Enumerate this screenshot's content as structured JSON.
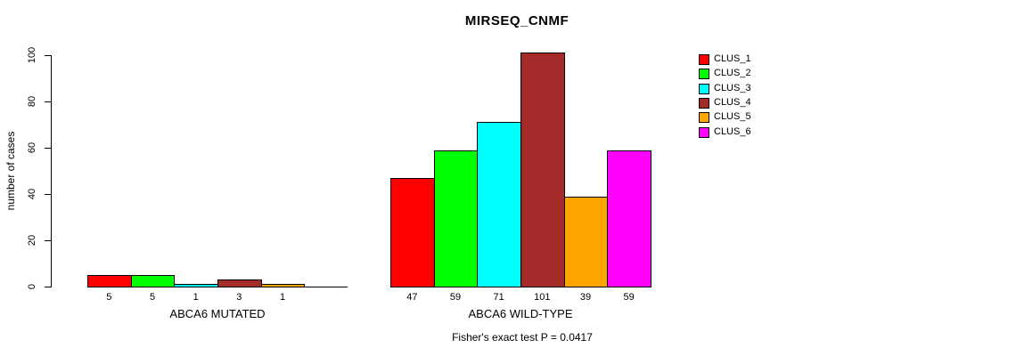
{
  "title": "MIRSEQ_CNMF",
  "chart_data": {
    "type": "bar",
    "title": "MIRSEQ_CNMF",
    "ylabel": "number of cases",
    "xlabel": "",
    "ylim": [
      0,
      100
    ],
    "yticks": [
      0,
      20,
      40,
      60,
      80,
      100
    ],
    "grid": false,
    "legend_position": "right",
    "categories": [
      "ABCA6 MUTATED",
      "ABCA6 WILD-TYPE"
    ],
    "series": [
      {
        "name": "CLUS_1",
        "color": "#FF0000",
        "values": [
          5,
          47
        ]
      },
      {
        "name": "CLUS_2",
        "color": "#00FF00",
        "values": [
          5,
          59
        ]
      },
      {
        "name": "CLUS_3",
        "color": "#00FFFF",
        "values": [
          1,
          71
        ]
      },
      {
        "name": "CLUS_4",
        "color": "#A52A2A",
        "values": [
          3,
          101
        ]
      },
      {
        "name": "CLUS_5",
        "color": "#FFA500",
        "values": [
          1,
          39
        ]
      },
      {
        "name": "CLUS_6",
        "color": "#FF00FF",
        "values": [
          0,
          59
        ]
      }
    ],
    "bar_value_labels": {
      "ABCA6 MUTATED": [
        "5",
        "5",
        "1",
        "3",
        "1",
        ""
      ],
      "ABCA6 WILD-TYPE": [
        "47",
        "59",
        "71",
        "101",
        "39",
        "59"
      ]
    },
    "annotation": "Fisher's exact test P = 0.0417"
  }
}
